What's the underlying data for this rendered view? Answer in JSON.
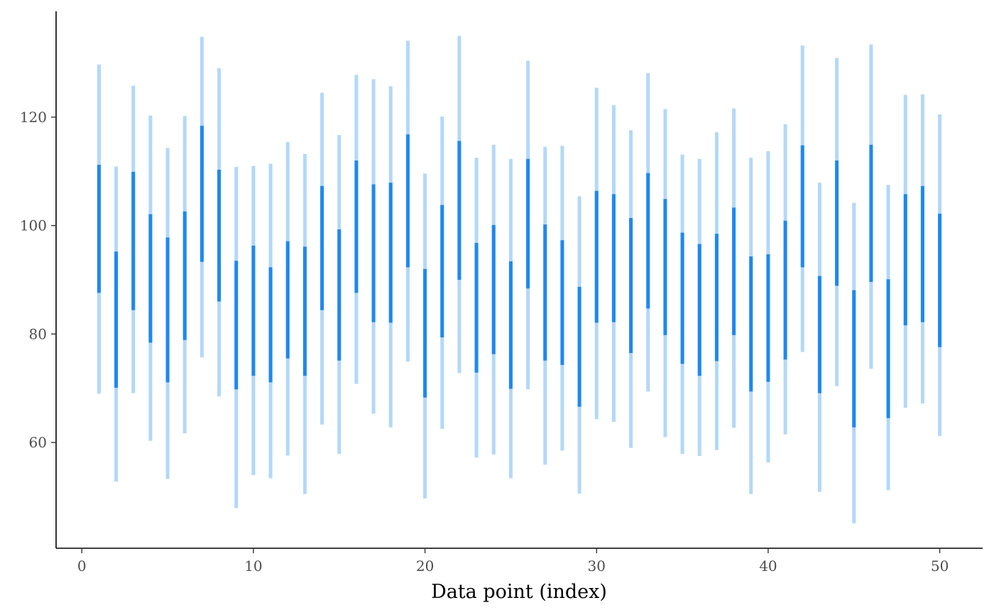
{
  "chart_data": {
    "type": "interval",
    "xlabel": "Data point (index)",
    "ylabel": "",
    "xlim": [
      -1.5,
      52.5
    ],
    "ylim": [
      40.5,
      139.5
    ],
    "x_ticks": [
      0,
      10,
      20,
      30,
      40,
      50
    ],
    "y_ticks": [
      60,
      80,
      100,
      120
    ],
    "colors": {
      "inner": "#1e88f0",
      "outer": "#b3d8f8",
      "axis": "#000000",
      "tick_text": "#4d4d4d"
    },
    "series": [
      {
        "name": "outer_interval",
        "low": [
          69.0,
          52.8,
          69.1,
          60.3,
          53.3,
          61.7,
          75.7,
          68.5,
          47.9,
          54.0,
          53.4,
          57.6,
          50.5,
          63.3,
          57.9,
          70.8,
          65.3,
          62.8,
          74.9,
          49.7,
          62.5,
          72.8,
          57.2,
          57.8,
          53.4,
          69.8,
          55.9,
          58.5,
          50.6,
          64.3,
          63.8,
          59.0,
          69.4,
          61.0,
          57.9,
          57.5,
          58.6,
          62.7,
          50.5,
          56.3,
          61.5,
          76.7,
          50.9,
          70.4,
          45.1,
          73.6,
          51.2,
          66.4,
          67.2,
          61.2
        ],
        "high": [
          129.7,
          110.9,
          125.8,
          120.3,
          114.3,
          120.2,
          134.8,
          129.0,
          110.8,
          111.0,
          111.4,
          115.4,
          113.2,
          124.5,
          116.7,
          127.8,
          127.0,
          125.7,
          134.1,
          109.6,
          120.1,
          135.0,
          112.5,
          114.9,
          112.3,
          130.4,
          114.5,
          114.7,
          105.4,
          125.4,
          122.2,
          117.6,
          128.1,
          121.5,
          113.1,
          112.3,
          117.2,
          121.6,
          112.5,
          113.7,
          118.7,
          133.2,
          107.9,
          130.9,
          104.2,
          133.4,
          107.5,
          124.1,
          124.2,
          120.5
        ]
      },
      {
        "name": "inner_interval",
        "low": [
          87.6,
          70.1,
          84.4,
          78.4,
          71.1,
          78.9,
          93.3,
          86.0,
          69.8,
          72.3,
          71.1,
          75.5,
          72.3,
          84.4,
          75.1,
          87.6,
          82.2,
          82.1,
          92.3,
          68.3,
          79.4,
          90.0,
          72.9,
          76.3,
          69.9,
          88.4,
          75.1,
          74.3,
          66.6,
          82.1,
          82.2,
          76.5,
          84.7,
          79.8,
          74.5,
          72.3,
          75.0,
          79.8,
          69.4,
          71.2,
          75.3,
          92.3,
          69.1,
          88.9,
          62.8,
          89.6,
          64.5,
          81.6,
          82.2,
          77.6
        ],
        "high": [
          111.2,
          95.2,
          109.9,
          102.1,
          97.8,
          102.6,
          118.4,
          110.3,
          93.5,
          96.3,
          92.3,
          97.1,
          96.1,
          107.3,
          99.3,
          112.0,
          107.6,
          107.9,
          116.8,
          92.0,
          103.8,
          115.6,
          96.8,
          100.1,
          93.4,
          112.3,
          100.2,
          97.3,
          88.7,
          106.4,
          105.8,
          101.4,
          109.7,
          104.9,
          98.7,
          96.6,
          98.5,
          103.3,
          94.3,
          94.7,
          100.9,
          114.8,
          90.7,
          112.0,
          88.1,
          114.9,
          90.1,
          105.8,
          107.3,
          102.2
        ]
      }
    ]
  }
}
